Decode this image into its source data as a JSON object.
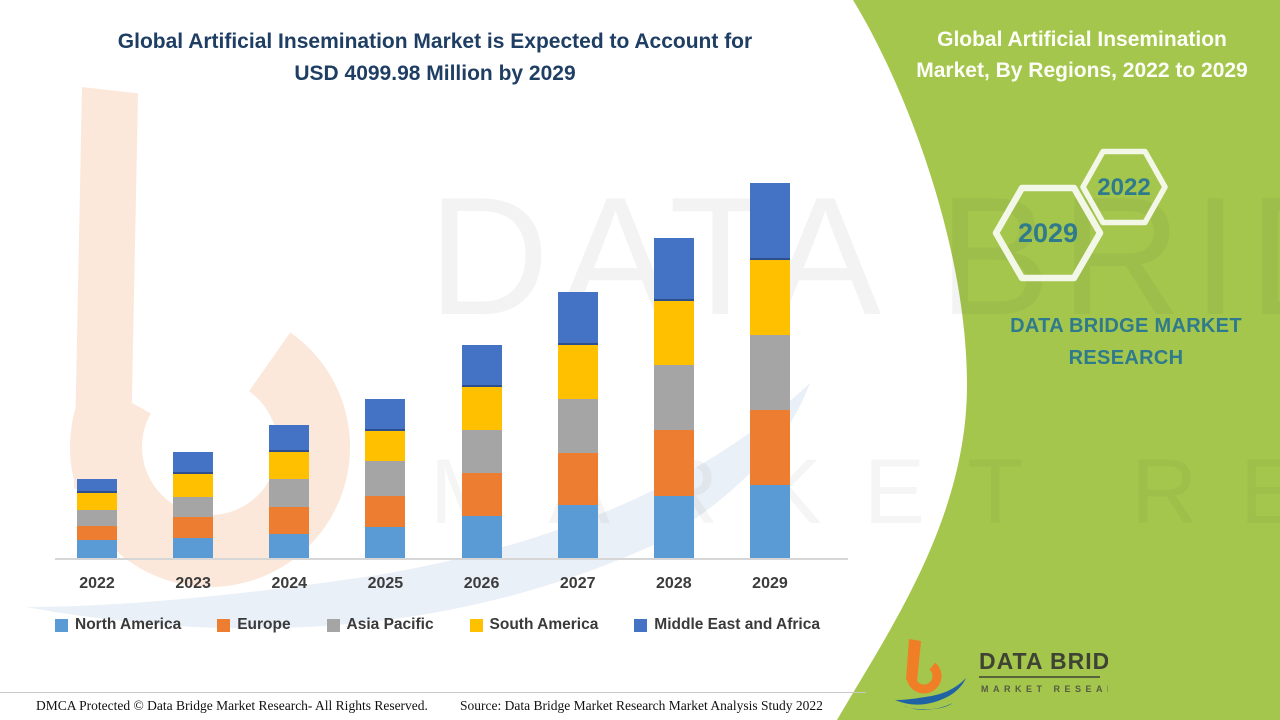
{
  "title": {
    "lines": [
      "Global Artificial Insemination Market is Expected to Account for",
      "USD 4099.98 Million by 2029"
    ]
  },
  "panel": {
    "title_lines": [
      "Global Artificial Insemination",
      "Market, By Regions, 2022 to 2029"
    ],
    "hexagons": [
      {
        "label": "2029"
      },
      {
        "label": "2022"
      }
    ],
    "brand_text": "DATA BRIDGE MARKET RESEARCH",
    "logo": {
      "name": "DATA BRIDGE",
      "subname": "MARKET RESEARCH"
    },
    "bg_color": "#A4C64C",
    "text_color": "#2F7A8C"
  },
  "watermark": {
    "big_letter": "b",
    "text1": "DATA BRIDGE",
    "text2": "MARKET RESEARCH"
  },
  "footer": {
    "left": "DMCA Protected © Data Bridge Market Research- All Rights Reserved.",
    "right": "Source: Data Bridge Market Research Market Analysis Study 2022"
  },
  "chart_data": {
    "type": "bar",
    "stacked": true,
    "title": "Global Artificial Insemination Market, By Regions, 2022 to 2029",
    "unit": "USD Million",
    "categories": [
      "2022",
      "2023",
      "2024",
      "2025",
      "2026",
      "2027",
      "2028",
      "2029"
    ],
    "series": [
      {
        "name": "North America",
        "color": "#5B9BD5",
        "values": [
          207,
          233,
          270,
          352,
          468,
          590,
          690,
          808
        ]
      },
      {
        "name": "Europe",
        "color": "#ED7D31",
        "values": [
          156,
          230,
          300,
          338,
          465,
          565,
          718,
          818
        ]
      },
      {
        "name": "Asia Pacific",
        "color": "#A5A5A5",
        "values": [
          171,
          218,
          299,
          374,
          472,
          592,
          709,
          818
        ]
      },
      {
        "name": "South America",
        "color": "#FFC000",
        "values": [
          182,
          250,
          301,
          335,
          466,
          592,
          698,
          818
        ]
      },
      {
        "name": "Middle East and Africa",
        "color": "#4472C4",
        "values": [
          156,
          233,
          291,
          348,
          462,
          576,
          691,
          838
        ]
      }
    ],
    "totals_estimated": [
      872,
      1164,
      1461,
      1747,
      2333,
      2915,
      3506,
      4100
    ],
    "stated_value": "USD 4099.98 Million by 2029",
    "xlabel": "",
    "ylabel": "",
    "ylim": [
      0,
      4100
    ],
    "grid": false,
    "legend_position": "bottom",
    "axis_line_color": "#D6D6D6"
  }
}
